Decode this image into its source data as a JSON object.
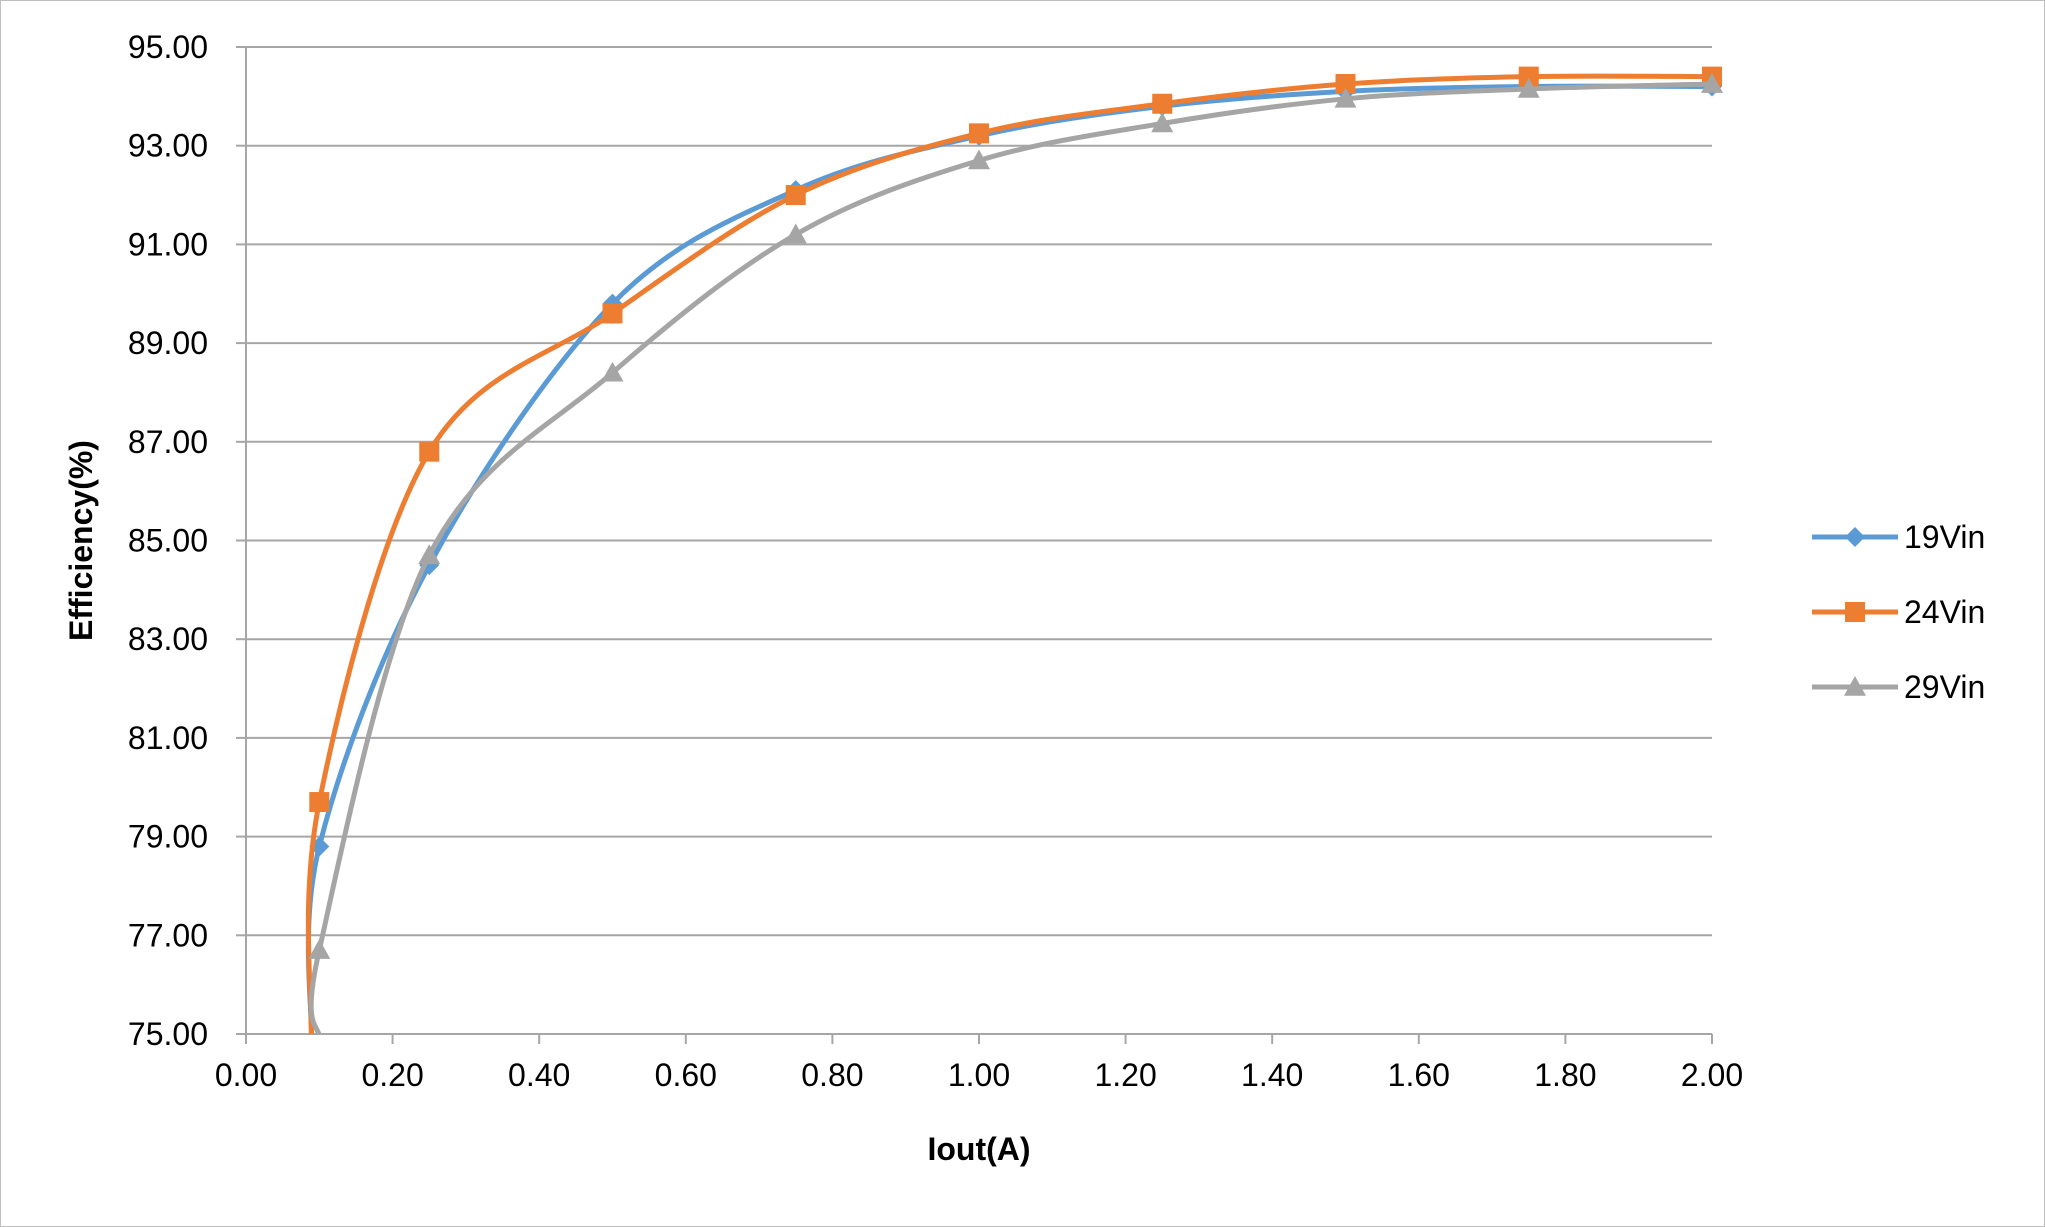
{
  "chart_data": {
    "type": "line",
    "title": "",
    "xlabel": "Iout(A)",
    "ylabel": "Efficiency(%)",
    "xlim": [
      0,
      2
    ],
    "ylim": [
      75,
      95
    ],
    "xticks": [
      0,
      0.2,
      0.4,
      0.6,
      0.8,
      1.0,
      1.2,
      1.4,
      1.6,
      1.8,
      2.0
    ],
    "xtick_labels": [
      "0.00",
      "0.20",
      "0.40",
      "0.60",
      "0.80",
      "1.00",
      "1.20",
      "1.40",
      "1.60",
      "1.80",
      "2.00"
    ],
    "yticks": [
      75,
      77,
      79,
      81,
      83,
      85,
      87,
      89,
      91,
      93,
      95
    ],
    "ytick_labels": [
      "75.00",
      "77.00",
      "79.00",
      "81.00",
      "83.00",
      "85.00",
      "87.00",
      "89.00",
      "91.00",
      "93.00",
      "95.00"
    ],
    "grid": "horizontal",
    "legend_position": "right",
    "x": [
      0.1,
      0.25,
      0.5,
      0.75,
      1.0,
      1.25,
      1.5,
      1.75,
      2.0
    ],
    "series": [
      {
        "name": "19Vin",
        "color": "#5B9BD5",
        "marker": "diamond",
        "values": [
          78.8,
          84.5,
          89.8,
          92.1,
          93.2,
          93.8,
          94.1,
          94.2,
          94.2
        ]
      },
      {
        "name": "24Vin",
        "color": "#ED7D31",
        "marker": "square",
        "values": [
          79.7,
          86.8,
          89.6,
          92.0,
          93.25,
          93.85,
          94.25,
          94.4,
          94.4
        ]
      },
      {
        "name": "29Vin",
        "color": "#A5A5A5",
        "marker": "triangle",
        "values": [
          76.7,
          84.7,
          88.4,
          91.2,
          92.7,
          93.45,
          93.95,
          94.15,
          94.25
        ]
      }
    ]
  }
}
